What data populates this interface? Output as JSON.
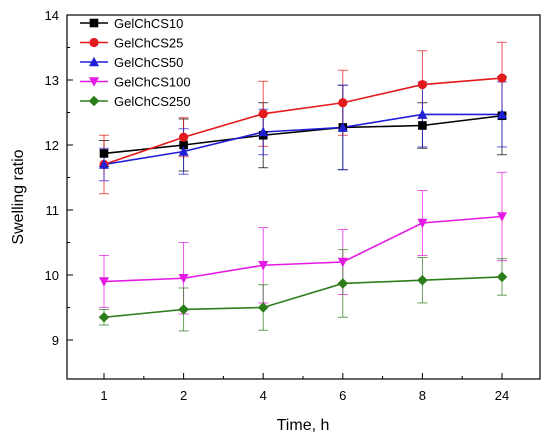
{
  "chart_data": {
    "type": "line",
    "title": "",
    "xlabel": "Time, h",
    "ylabel": "Swelling ratio",
    "categories": [
      "1",
      "2",
      "4",
      "6",
      "8",
      "24"
    ],
    "ylim": [
      8.4,
      14
    ],
    "yticks": [
      "9",
      "10",
      "11",
      "12",
      "13",
      "14"
    ],
    "grid": false,
    "legend_position": "top-left",
    "series": [
      {
        "name": "GelChCS10",
        "color": "#000000",
        "marker": "square",
        "values": [
          11.87,
          12.0,
          12.15,
          12.27,
          12.3,
          12.45
        ],
        "errors": [
          0.2,
          0.4,
          0.5,
          0.65,
          0.35,
          0.6
        ]
      },
      {
        "name": "GelChCS25",
        "color": "#e31a1c",
        "marker": "circle",
        "values": [
          11.7,
          12.12,
          12.48,
          12.65,
          12.93,
          13.03
        ],
        "errors": [
          0.45,
          0.3,
          0.5,
          0.5,
          0.52,
          0.55
        ]
      },
      {
        "name": "GelChCS50",
        "color": "#1f1fd6",
        "marker": "triangle-up",
        "values": [
          11.7,
          11.9,
          12.2,
          12.27,
          12.47,
          12.47
        ],
        "errors": [
          0.25,
          0.35,
          0.35,
          0.65,
          0.5,
          0.5
        ]
      },
      {
        "name": "GelChCS100",
        "color": "#e41ae4",
        "marker": "triangle-down",
        "values": [
          9.9,
          9.95,
          10.15,
          10.2,
          10.8,
          10.9
        ],
        "errors": [
          0.4,
          0.55,
          0.58,
          0.5,
          0.5,
          0.68
        ]
      },
      {
        "name": "GelChCS250",
        "color": "#2e7d1b",
        "marker": "diamond",
        "values": [
          9.35,
          9.47,
          9.5,
          9.87,
          9.92,
          9.97
        ],
        "errors": [
          0.12,
          0.33,
          0.35,
          0.52,
          0.35,
          0.28
        ]
      }
    ]
  }
}
